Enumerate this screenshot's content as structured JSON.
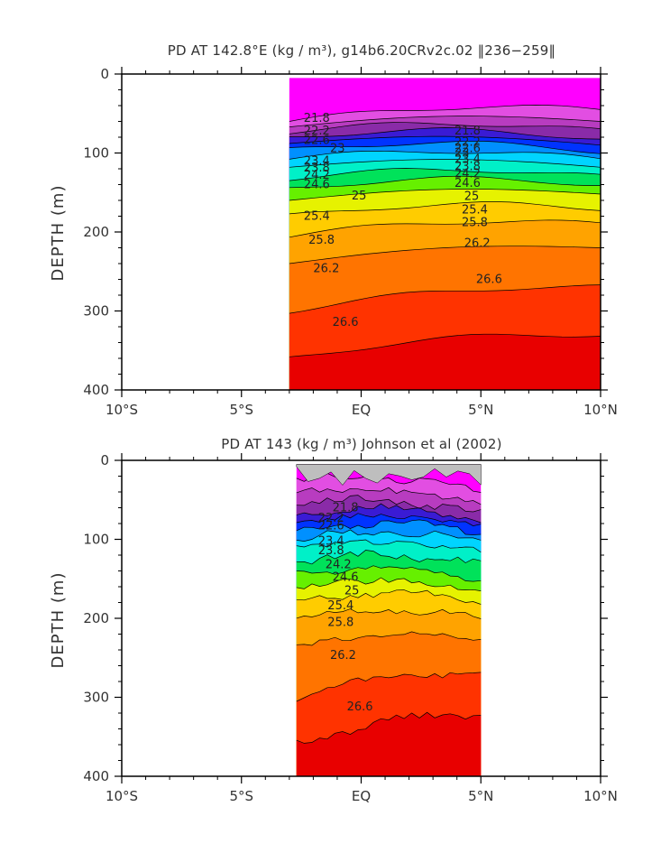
{
  "figure": {
    "x_tick_labels": [
      "10°S",
      "5°S",
      "EQ",
      "5°N",
      "10°N"
    ],
    "y_tick_labels": [
      "0",
      "100",
      "200",
      "300",
      "400"
    ]
  },
  "chart_data": [
    {
      "type": "heatmap",
      "title": "PD AT 142.8°E (kg / m³), g14b6.20CRv2c.02 ‖236−259‖",
      "xlabel": "",
      "ylabel": "DEPTH (m)",
      "xlim": [
        -10,
        10
      ],
      "ylim": [
        400,
        0
      ],
      "y_inverted": true,
      "data_extent_x": [
        -3,
        10
      ],
      "data_extent_y": [
        5,
        400
      ],
      "grid": false,
      "contour_levels": [
        21.0,
        21.4,
        21.8,
        22.2,
        22.6,
        23.0,
        23.4,
        23.8,
        24.2,
        24.6,
        25.0,
        25.4,
        25.8,
        26.2,
        26.6,
        27.0
      ],
      "contour_depth_left": [
        60,
        67,
        73,
        80,
        88,
        96,
        107,
        118,
        132,
        145,
        160,
        180,
        205,
        240,
        300,
        360
      ],
      "contour_depth_right": [
        45,
        60,
        72,
        82,
        90,
        98,
        108,
        118,
        130,
        140,
        152,
        170,
        190,
        220,
        270,
        330
      ],
      "contour_labels": [
        {
          "text": "21.8",
          "x": -2.4,
          "y": 56
        },
        {
          "text": "22.2",
          "x": -2.4,
          "y": 72
        },
        {
          "text": "22.6",
          "x": -2.4,
          "y": 84
        },
        {
          "text": "23.4",
          "x": -2.4,
          "y": 110
        },
        {
          "text": "23.8",
          "x": -2.4,
          "y": 119
        },
        {
          "text": "24.2",
          "x": -2.4,
          "y": 128
        },
        {
          "text": "24.6",
          "x": -2.4,
          "y": 140
        },
        {
          "text": "25",
          "x": -0.4,
          "y": 154
        },
        {
          "text": "25.4",
          "x": -2.4,
          "y": 180
        },
        {
          "text": "25.8",
          "x": -2.2,
          "y": 210
        },
        {
          "text": "26.2",
          "x": -2.0,
          "y": 246
        },
        {
          "text": "26.6",
          "x": -1.2,
          "y": 314
        },
        {
          "text": "23",
          "x": -1.3,
          "y": 94
        },
        {
          "text": "21.8",
          "x": 3.9,
          "y": 72
        },
        {
          "text": "22.2",
          "x": 3.9,
          "y": 86
        },
        {
          "text": "22.6",
          "x": 3.9,
          "y": 94
        },
        {
          "text": "23",
          "x": 3.9,
          "y": 100
        },
        {
          "text": "23.4",
          "x": 3.9,
          "y": 108
        },
        {
          "text": "23.8",
          "x": 3.9,
          "y": 117
        },
        {
          "text": "24.2",
          "x": 3.9,
          "y": 126
        },
        {
          "text": "24.6",
          "x": 3.9,
          "y": 138
        },
        {
          "text": "25",
          "x": 4.3,
          "y": 155
        },
        {
          "text": "25.4",
          "x": 4.2,
          "y": 172
        },
        {
          "text": "25.8",
          "x": 4.2,
          "y": 188
        },
        {
          "text": "26.2",
          "x": 4.3,
          "y": 214
        },
        {
          "text": "26.6",
          "x": 4.8,
          "y": 260
        }
      ]
    },
    {
      "type": "heatmap",
      "title": "PD AT 143 (kg / m³) Johnson et al (2002)",
      "xlabel": "",
      "ylabel": "DEPTH (m)",
      "xlim": [
        -10,
        10
      ],
      "ylim": [
        400,
        0
      ],
      "y_inverted": true,
      "data_extent_x": [
        -2.7,
        5
      ],
      "data_extent_y": [
        5,
        400
      ],
      "grid": false,
      "contour_levels": [
        21.0,
        21.4,
        21.8,
        22.2,
        22.6,
        23.0,
        23.4,
        23.8,
        24.2,
        24.6,
        25.0,
        25.4,
        25.8,
        26.2,
        26.6,
        27.0
      ],
      "contour_depth_left": [
        25,
        40,
        55,
        68,
        78,
        88,
        100,
        112,
        128,
        145,
        160,
        178,
        200,
        235,
        300,
        360
      ],
      "contour_depth_right": [
        40,
        55,
        68,
        75,
        82,
        90,
        102,
        115,
        132,
        150,
        165,
        180,
        200,
        225,
        270,
        320
      ],
      "contour_labels": [
        {
          "text": "21.8",
          "x": -1.2,
          "y": 60
        },
        {
          "text": "22.2",
          "x": -1.8,
          "y": 73
        },
        {
          "text": "22.6",
          "x": -1.8,
          "y": 83
        },
        {
          "text": "23.4",
          "x": -1.8,
          "y": 102
        },
        {
          "text": "23.8",
          "x": -1.8,
          "y": 114
        },
        {
          "text": "24.2",
          "x": -1.5,
          "y": 132
        },
        {
          "text": "24.6",
          "x": -1.2,
          "y": 148
        },
        {
          "text": "25",
          "x": -0.7,
          "y": 165
        },
        {
          "text": "25.4",
          "x": -1.4,
          "y": 184
        },
        {
          "text": "25.8",
          "x": -1.4,
          "y": 205
        },
        {
          "text": "26.2",
          "x": -1.3,
          "y": 247
        },
        {
          "text": "26.6",
          "x": -0.6,
          "y": 312
        }
      ]
    }
  ],
  "colors": {
    "background": "#ffffff",
    "missing": "#bebebe",
    "axis": "#000000",
    "text": "#333333",
    "palette": [
      "#ff00ff",
      "#e24ee2",
      "#b83cc0",
      "#8a2ba8",
      "#3a1bd4",
      "#0033ff",
      "#0090ff",
      "#00d4ff",
      "#00f0c8",
      "#00e25a",
      "#66f000",
      "#e6f200",
      "#ffcc00",
      "#ffa300",
      "#ff7400",
      "#ff3300",
      "#e80000",
      "#c30000"
    ]
  }
}
